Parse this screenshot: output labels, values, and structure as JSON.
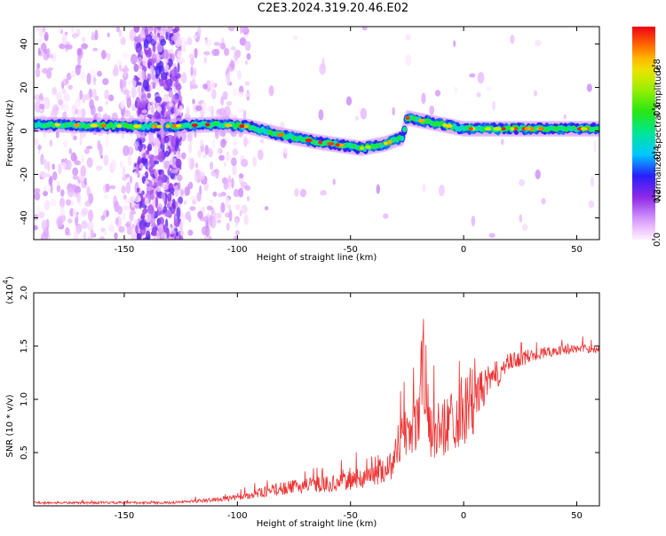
{
  "title": "C2E3.2024.319.20.46.E02",
  "chart_data": [
    {
      "type": "heatmap",
      "xlabel": "Height of straight line (km)",
      "ylabel": "Frequency (Hz)",
      "xlim": [
        -190,
        60
      ],
      "ylim": [
        -50,
        48
      ],
      "xticks": [
        -150,
        -100,
        -50,
        0,
        50
      ],
      "yticks": [
        -40,
        -20,
        0,
        20,
        40
      ],
      "colorbar": {
        "label": "Normalized spectral amplitude",
        "range": [
          0,
          0.98
        ],
        "ticks": [
          0.0,
          0.2,
          0.4,
          0.6,
          0.8
        ]
      },
      "ridge": {
        "description_points_x": [
          -190,
          -135,
          -110,
          -95,
          -80,
          -65,
          -45,
          -35,
          -27,
          -25,
          -15,
          0,
          20,
          40,
          60
        ],
        "description_points_y": [
          3,
          2,
          3,
          2,
          -2,
          -5,
          -8,
          -6,
          -3,
          6,
          4,
          1,
          1,
          1,
          1
        ]
      }
    },
    {
      "type": "line",
      "xlabel": "Height of straight line (km)",
      "ylabel": "SNR (10 * v/v)",
      "yscale_label": "(x10",
      "yscale_exp": "4",
      "xlim": [
        -190,
        60
      ],
      "ylim": [
        0,
        2.0
      ],
      "xticks": [
        -150,
        -100,
        -50,
        0,
        50
      ],
      "yticks": [
        0.5,
        1.0,
        1.5,
        2.0
      ],
      "series_color": "#ee3333",
      "envelope_x": [
        -190,
        -130,
        -115,
        -100,
        -85,
        -70,
        -55,
        -40,
        -32,
        -28,
        -24,
        -20,
        -18,
        -15,
        -10,
        -5,
        0,
        5,
        10,
        15,
        20,
        30,
        40,
        50,
        60
      ],
      "envelope_y": [
        0.03,
        0.03,
        0.05,
        0.08,
        0.15,
        0.2,
        0.22,
        0.3,
        0.4,
        0.65,
        0.75,
        0.85,
        1.4,
        0.7,
        0.75,
        0.85,
        0.95,
        1.05,
        1.15,
        1.25,
        1.35,
        1.42,
        1.46,
        1.48,
        1.48
      ]
    }
  ],
  "colors": {
    "line": "#ee3333",
    "axis": "#000000"
  }
}
